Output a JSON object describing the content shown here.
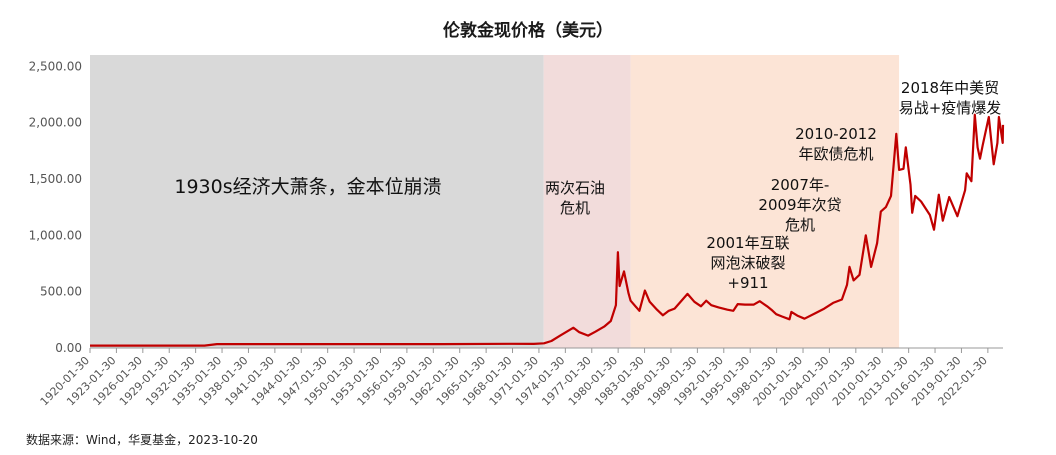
{
  "source": "数据来源：Wind，华夏基金，2023-10-20",
  "chart_data": {
    "type": "line",
    "title": "伦敦金现价格（美元）",
    "xlabel": "",
    "ylabel": "",
    "ylim": [
      0,
      2600
    ],
    "xlim": [
      "1920-01-30",
      "2023-10-20"
    ],
    "grid": false,
    "legend": "none",
    "yticks": [
      0,
      500,
      1000,
      1500,
      2000,
      2500
    ],
    "ytick_labels": [
      "0.00",
      "500.00",
      "1,000.00",
      "1,500.00",
      "2,000.00",
      "2,500.00"
    ],
    "xticks": [
      "1920-01-30",
      "1923-01-30",
      "1926-01-30",
      "1929-01-30",
      "1932-01-30",
      "1935-01-30",
      "1938-01-30",
      "1941-01-30",
      "1944-01-30",
      "1947-01-30",
      "1950-01-30",
      "1953-01-30",
      "1956-01-30",
      "1959-01-30",
      "1962-01-30",
      "1965-01-30",
      "1968-01-30",
      "1971-01-30",
      "1974-01-30",
      "1977-01-30",
      "1980-01-30",
      "1983-01-30",
      "1986-01-30",
      "1989-01-30",
      "1992-01-30",
      "1995-01-30",
      "1998-01-30",
      "2001-01-30",
      "2004-01-30",
      "2007-01-30",
      "2010-01-30",
      "2013-01-30",
      "2016-01-30",
      "2019-01-30",
      "2022-01-30"
    ],
    "series": [
      {
        "color": "#c00000",
        "x": [
          "1920-01-30",
          "1933-01-30",
          "1934-06-30",
          "1960-01-30",
          "1968-01-30",
          "1970-06-30",
          "1971-08-30",
          "1972-06-30",
          "1973-06-30",
          "1974-12-30",
          "1975-08-30",
          "1976-08-30",
          "1977-06-30",
          "1978-06-30",
          "1979-03-30",
          "1979-10-30",
          "1980-01-21",
          "1980-03-30",
          "1980-09-30",
          "1981-03-30",
          "1981-06-30",
          "1982-06-30",
          "1983-02-15",
          "1983-08-30",
          "1984-06-30",
          "1985-02-28",
          "1985-10-30",
          "1986-06-30",
          "1987-12-15",
          "1988-09-30",
          "1989-06-30",
          "1990-01-30",
          "1990-08-30",
          "1991-06-30",
          "1992-06-30",
          "1993-02-28",
          "1993-08-30",
          "1994-06-30",
          "1995-06-30",
          "1996-02-28",
          "1996-12-30",
          "1997-06-30",
          "1998-01-15",
          "1998-08-30",
          "1999-07-20",
          "1999-10-05",
          "2000-06-30",
          "2001-04-01",
          "2002-06-30",
          "2003-06-30",
          "2004-06-30",
          "2005-06-30",
          "2006-01-30",
          "2006-05-12",
          "2006-10-30",
          "2007-06-30",
          "2008-03-17",
          "2008-10-24",
          "2009-06-30",
          "2009-12-02",
          "2010-06-30",
          "2011-01-30",
          "2011-09-06",
          "2011-12-30",
          "2012-06-30",
          "2012-10-04",
          "2013-04-15",
          "2013-06-28",
          "2013-10-30",
          "2014-06-30",
          "2015-06-30",
          "2015-12-17",
          "2016-07-06",
          "2016-12-15",
          "2017-09-08",
          "2018-08-16",
          "2019-06-30",
          "2019-09-04",
          "2020-03-19",
          "2020-08-06",
          "2020-11-30",
          "2021-03-08",
          "2021-06-30",
          "2022-03-08",
          "2022-09-28",
          "2023-02-28",
          "2023-05-04",
          "2023-10-06",
          "2023-10-20"
        ],
        "values": [
          21,
          21,
          35,
          35,
          37,
          36,
          42,
          62,
          110,
          180,
          140,
          110,
          145,
          190,
          240,
          380,
          850,
          550,
          680,
          490,
          420,
          330,
          510,
          410,
          340,
          290,
          330,
          350,
          480,
          410,
          370,
          420,
          380,
          360,
          340,
          330,
          390,
          385,
          385,
          415,
          370,
          340,
          300,
          280,
          255,
          320,
          285,
          260,
          310,
          350,
          400,
          430,
          560,
          720,
          600,
          650,
          1000,
          720,
          930,
          1210,
          1250,
          1350,
          1900,
          1580,
          1590,
          1780,
          1450,
          1200,
          1350,
          1300,
          1180,
          1050,
          1360,
          1130,
          1340,
          1170,
          1400,
          1550,
          1480,
          2070,
          1780,
          1680,
          1800,
          2050,
          1630,
          1820,
          2050,
          1820,
          1980
        ]
      }
    ],
    "shaded_periods": [
      {
        "start": "1920-01-30",
        "end": "1971-08-15",
        "color": "#d9d9d9"
      },
      {
        "start": "1971-08-15",
        "end": "1981-06-30",
        "color": "#f2dcdb"
      },
      {
        "start": "1981-06-30",
        "end": "2011-12-30",
        "color": "#fce4d6"
      }
    ],
    "annotations": [
      {
        "lines": [
          "1930s经济大萧条，金本位崩溃"
        ],
        "size": "big"
      },
      {
        "lines": [
          "两次石油",
          "危机"
        ],
        "size": "normal"
      },
      {
        "lines": [
          "2001年互联",
          "网泡沫破裂",
          "+911"
        ],
        "size": "normal"
      },
      {
        "lines": [
          "2007年-",
          "2009年次贷",
          "危机"
        ],
        "size": "normal"
      },
      {
        "lines": [
          "2010-2012",
          "年欧债危机"
        ],
        "size": "normal"
      },
      {
        "lines": [
          "2018年中美贸",
          "易战+疫情爆发"
        ],
        "size": "normal"
      }
    ]
  }
}
